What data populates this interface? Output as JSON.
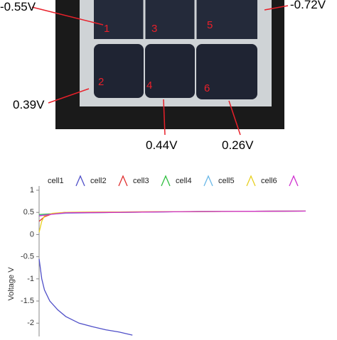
{
  "photo": {
    "voltage_labels": [
      "-0.55V",
      "-0.72V",
      "0.39V",
      "0.44V",
      "0.26V"
    ],
    "cell_numbers": [
      "1",
      "2",
      "3",
      "4",
      "5",
      "6"
    ]
  },
  "chart_data": {
    "type": "line",
    "y_label": "Voltage V",
    "ylim": [
      -2.3,
      1
    ],
    "yticks": [
      1,
      0.5,
      0,
      -0.5,
      -1,
      -1.5,
      -2
    ],
    "xlim": [
      0,
      100
    ],
    "series": [
      {
        "name": "cell1",
        "color": "#4f4fc8",
        "x": [
          0,
          1,
          2,
          4,
          7,
          10,
          15,
          20,
          25,
          30,
          35
        ],
        "values": [
          -0.55,
          -1.0,
          -1.25,
          -1.5,
          -1.7,
          -1.85,
          -2.0,
          -2.08,
          -2.15,
          -2.2,
          -2.27
        ]
      },
      {
        "name": "cell2",
        "color": "#e03030",
        "x": [
          0,
          2,
          5,
          10,
          30,
          60,
          100
        ],
        "values": [
          0.3,
          0.4,
          0.47,
          0.5,
          0.51,
          0.52,
          0.53
        ]
      },
      {
        "name": "cell3",
        "color": "#2fbf3f",
        "x": [
          0,
          5,
          10,
          30,
          60,
          100
        ],
        "values": [
          0.45,
          0.47,
          0.49,
          0.5,
          0.52,
          0.53
        ]
      },
      {
        "name": "cell4",
        "color": "#6ab8e8",
        "x": [
          0,
          5,
          10,
          30,
          60,
          100
        ],
        "values": [
          0.43,
          0.46,
          0.48,
          0.5,
          0.52,
          0.53
        ]
      },
      {
        "name": "cell5",
        "color": "#e8d020",
        "x": [
          0,
          1,
          2,
          5,
          10,
          30,
          100
        ],
        "values": [
          0.05,
          0.3,
          0.42,
          0.48,
          0.5,
          0.51,
          0.53
        ]
      },
      {
        "name": "cell6",
        "color": "#d030d0",
        "x": [
          0,
          5,
          10,
          30,
          60,
          100
        ],
        "values": [
          0.42,
          0.46,
          0.49,
          0.5,
          0.52,
          0.53
        ]
      }
    ]
  }
}
